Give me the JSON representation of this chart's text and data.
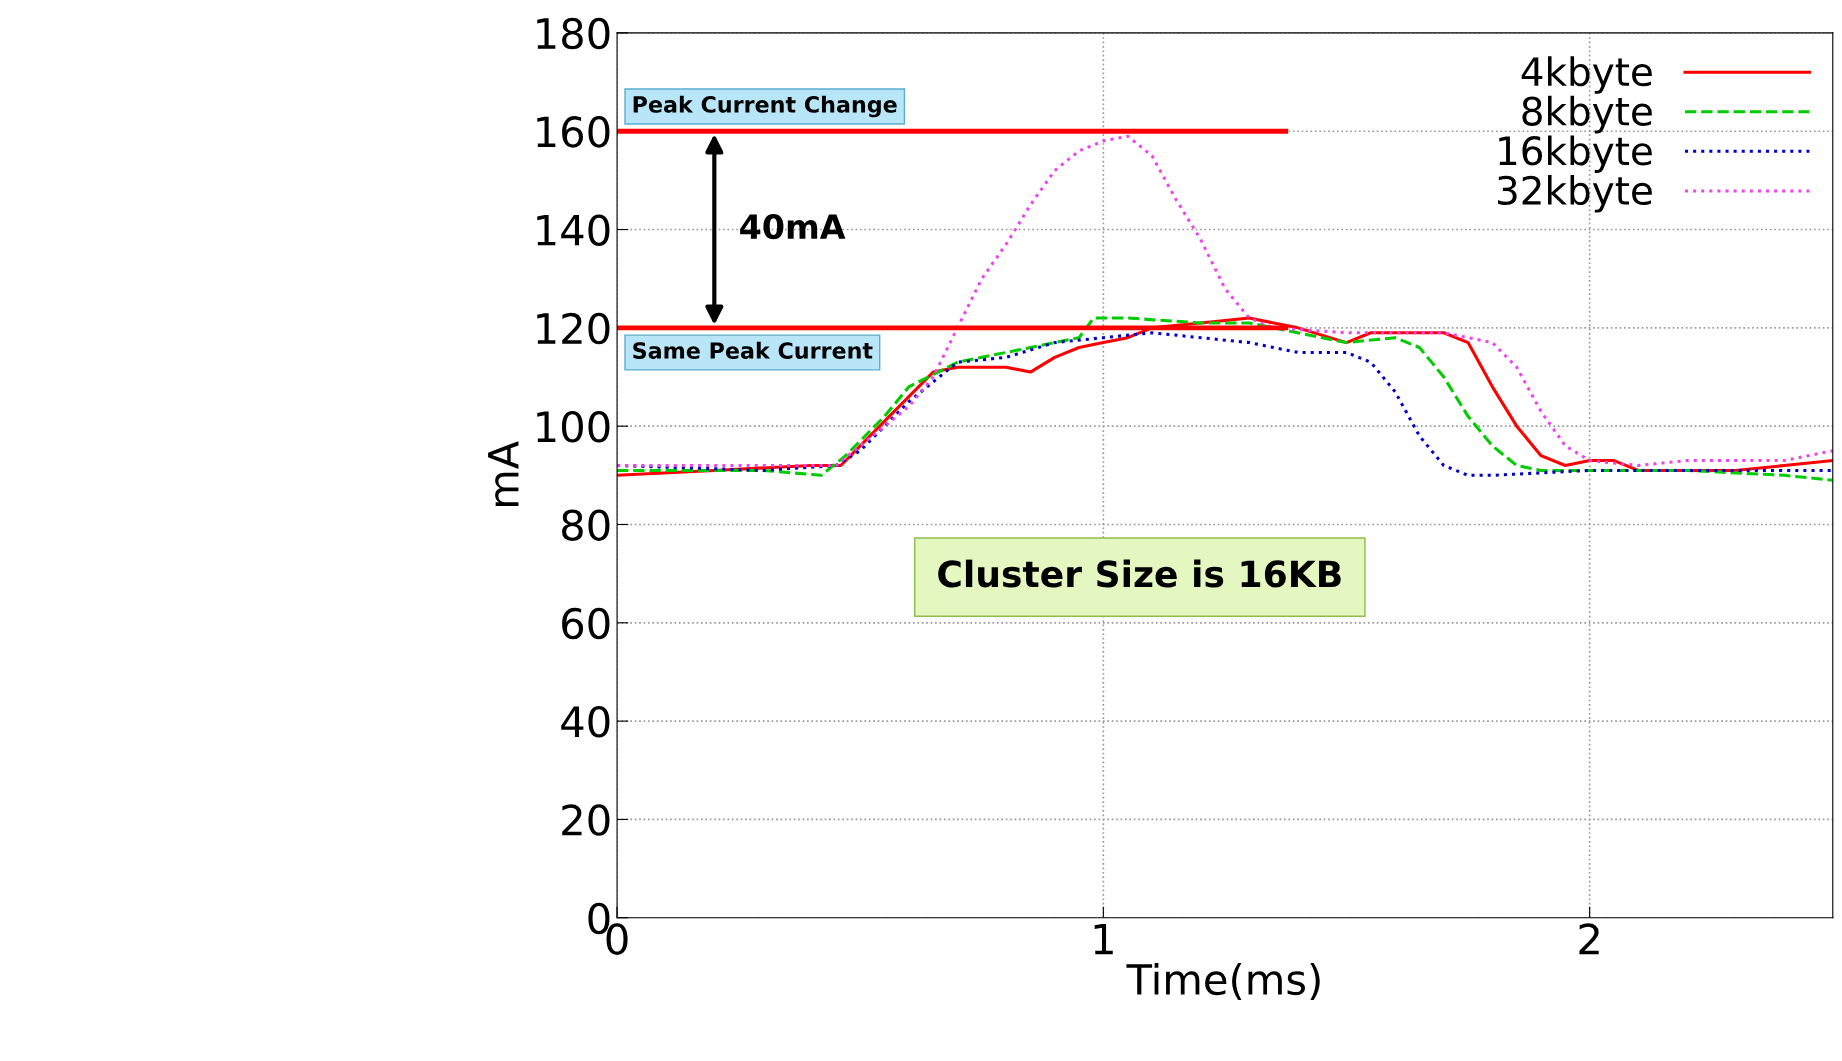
{
  "chart_data": {
    "type": "line",
    "xlabel": "Time(ms)",
    "ylabel": "mA",
    "xlim": [
      0,
      2.5
    ],
    "xticks": [
      0,
      1,
      2
    ],
    "ylim": [
      0,
      180
    ],
    "yticks": [
      0,
      20,
      40,
      60,
      80,
      100,
      120,
      140,
      160,
      180
    ],
    "grid": true,
    "legend": "top right",
    "marker": "none",
    "series": [
      {
        "name": "4kbyte",
        "color": "#ff0000",
        "line_style": "solid",
        "x": [
          0,
          0.2,
          0.4,
          0.46,
          0.5,
          0.6,
          0.65,
          0.7,
          0.8,
          0.85,
          0.9,
          0.95,
          1.0,
          1.05,
          1.1,
          1.2,
          1.3,
          1.4,
          1.5,
          1.55,
          1.6,
          1.7,
          1.75,
          1.8,
          1.85,
          1.9,
          1.95,
          2.0,
          2.05,
          2.1,
          2.2,
          2.3,
          2.4,
          2.5
        ],
        "values": [
          90,
          91,
          92,
          92,
          96,
          106,
          111,
          112,
          112,
          111,
          114,
          116,
          117,
          118,
          120,
          121,
          122,
          120,
          117,
          119,
          119,
          119,
          117,
          108,
          100,
          94,
          92,
          93,
          93,
          91,
          91,
          91,
          92,
          93
        ]
      },
      {
        "name": "8kbyte",
        "color": "#00cc00",
        "line_style": "dashed",
        "x": [
          0,
          0.3,
          0.42,
          0.47,
          0.55,
          0.6,
          0.7,
          0.8,
          0.9,
          0.95,
          0.98,
          1.05,
          1.2,
          1.3,
          1.4,
          1.5,
          1.6,
          1.65,
          1.7,
          1.75,
          1.8,
          1.85,
          1.9,
          2.0,
          2.2,
          2.4,
          2.5
        ],
        "values": [
          91,
          91,
          90,
          94,
          102,
          108,
          113,
          115,
          117,
          118,
          122,
          122,
          121,
          121,
          119,
          117,
          118,
          116,
          110,
          102,
          96,
          92,
          91,
          91,
          91,
          90,
          89
        ]
      },
      {
        "name": "16kbyte",
        "color": "#0000cc",
        "line_style": "dotted",
        "x": [
          0,
          0.3,
          0.45,
          0.5,
          0.6,
          0.7,
          0.8,
          0.9,
          1.0,
          1.1,
          1.2,
          1.3,
          1.4,
          1.5,
          1.55,
          1.6,
          1.65,
          1.7,
          1.75,
          1.8,
          2.0,
          2.2,
          2.4,
          2.5
        ],
        "values": [
          92,
          91,
          92,
          95,
          105,
          113,
          114,
          117,
          118,
          119,
          118,
          117,
          115,
          115,
          113,
          107,
          98,
          92,
          90,
          90,
          91,
          91,
          91,
          91
        ]
      },
      {
        "name": "32kbyte",
        "color": "#ee44ee",
        "line_style": "dotted",
        "x": [
          0,
          0.3,
          0.45,
          0.5,
          0.6,
          0.65,
          0.7,
          0.75,
          0.8,
          0.85,
          0.9,
          0.95,
          1.0,
          1.05,
          1.1,
          1.15,
          1.2,
          1.25,
          1.3,
          1.35,
          1.5,
          1.6,
          1.7,
          1.8,
          1.85,
          1.9,
          1.95,
          2.0,
          2.1,
          2.2,
          2.3,
          2.4,
          2.5
        ],
        "values": [
          92,
          92,
          92,
          96,
          104,
          110,
          120,
          130,
          137,
          145,
          152,
          156,
          158,
          159,
          155,
          146,
          138,
          128,
          122,
          120,
          119,
          119,
          119,
          117,
          112,
          103,
          96,
          93,
          92,
          93,
          93,
          93,
          95
        ]
      }
    ],
    "ref_lines": [
      {
        "axis": "y",
        "value": 160,
        "label": "Peak Current Change",
        "color": "#ff0000"
      },
      {
        "axis": "y",
        "value": 120,
        "label": "Same Peak Current",
        "color": "#ff0000"
      }
    ],
    "annotations": [
      "40mA",
      "Cluster Size is 16KB"
    ]
  }
}
